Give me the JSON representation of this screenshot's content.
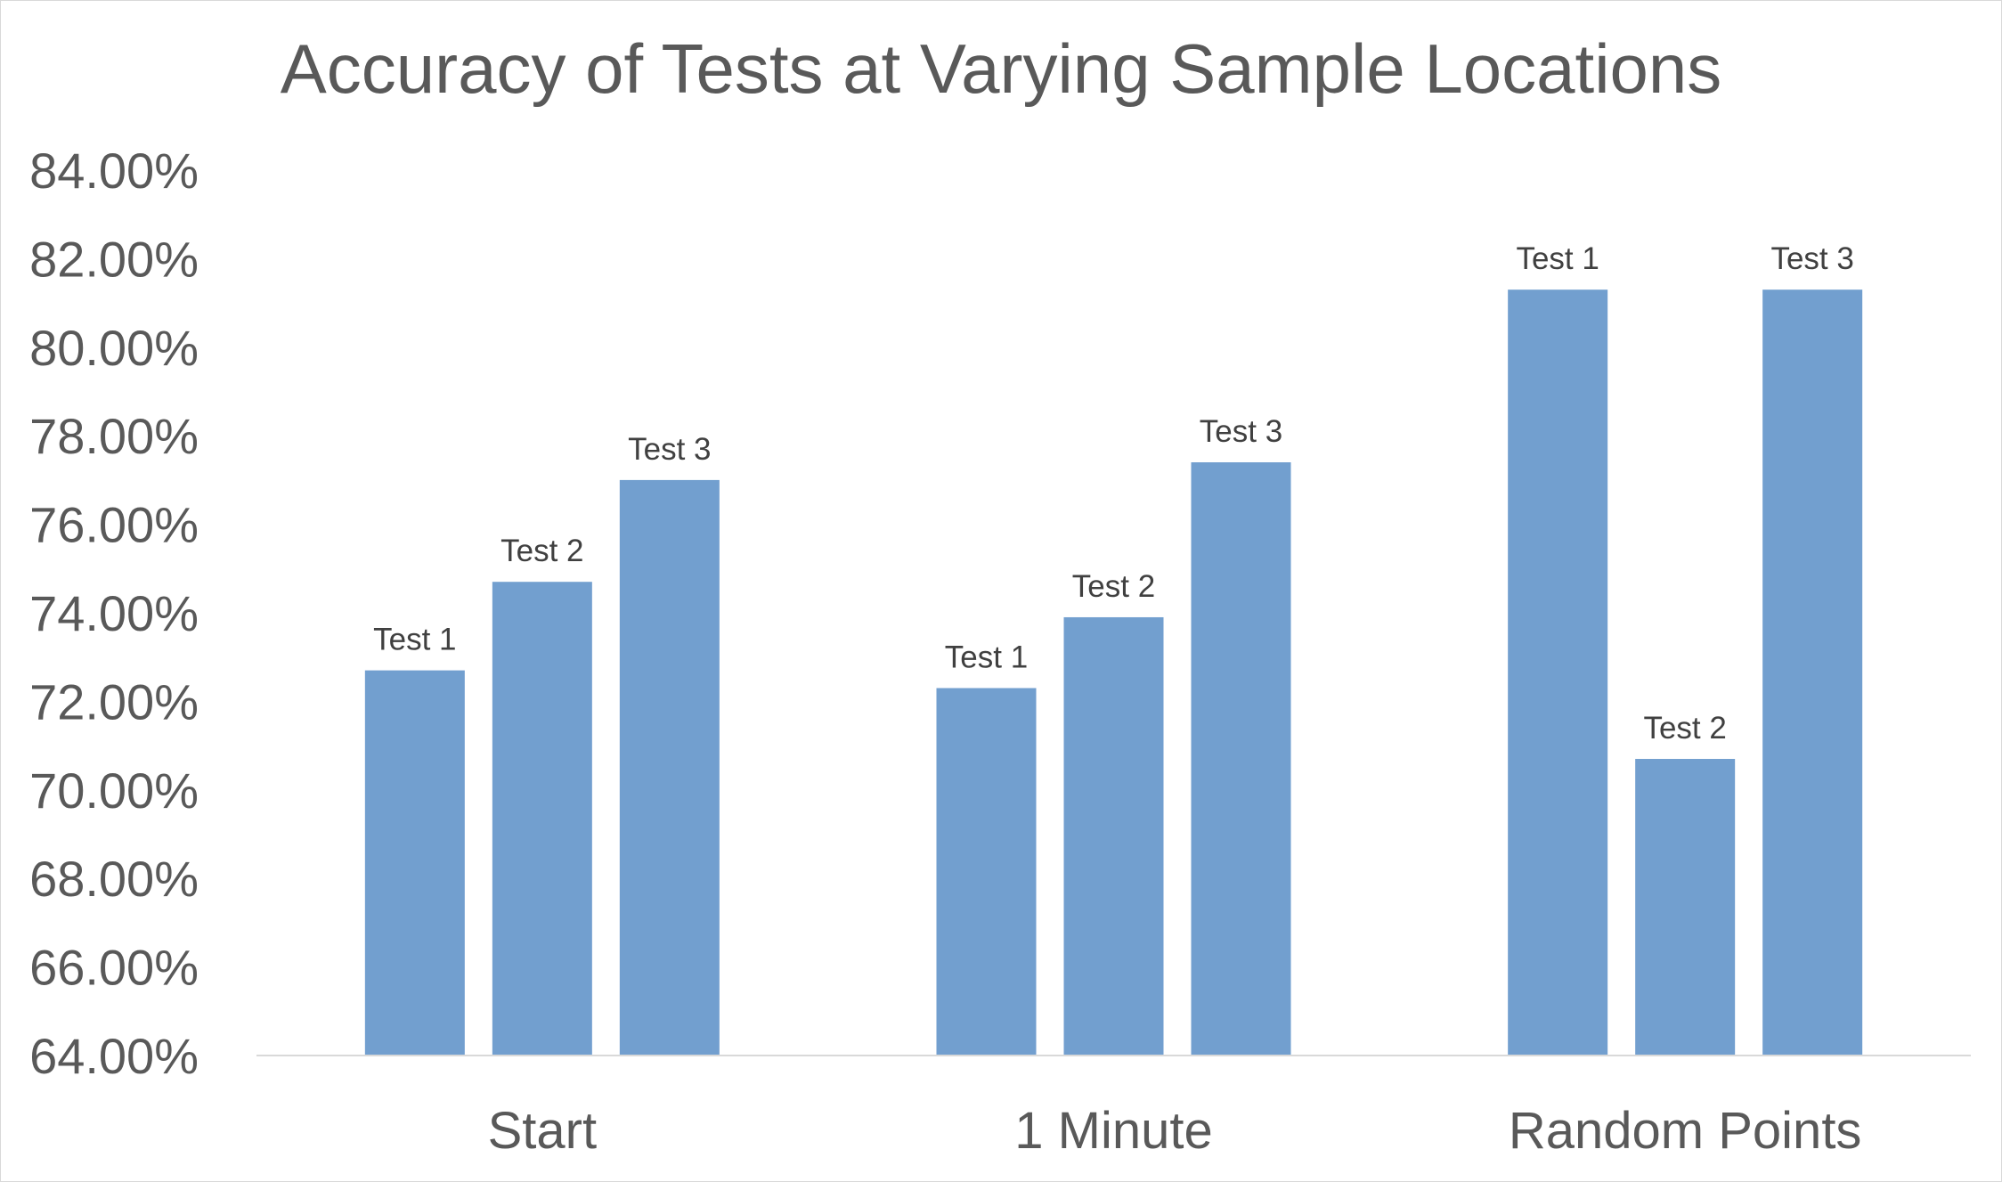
{
  "chart_data": {
    "type": "bar",
    "title": "Accuracy of Tests at Varying Sample Locations",
    "xlabel": "",
    "ylabel": "",
    "ylim": [
      64,
      84
    ],
    "yticks": [
      "64.00%",
      "66.00%",
      "68.00%",
      "70.00%",
      "72.00%",
      "74.00%",
      "76.00%",
      "78.00%",
      "80.00%",
      "82.00%",
      "84.00%"
    ],
    "categories": [
      "Start",
      "1 Minute",
      "Random Points"
    ],
    "legend": "none",
    "grid": false,
    "bar_color": "#729fcf",
    "series": [
      {
        "values": [
          72.7,
          72.3,
          81.3
        ],
        "labels": [
          "Test 1",
          "Test 1",
          "Test 1"
        ]
      },
      {
        "values": [
          74.7,
          73.9,
          70.7
        ],
        "labels": [
          "Test 2",
          "Test 2",
          "Test 2"
        ]
      },
      {
        "values": [
          77.0,
          77.4,
          81.3
        ],
        "labels": [
          "Test 3",
          "Test 3",
          "Test 3"
        ]
      }
    ]
  }
}
